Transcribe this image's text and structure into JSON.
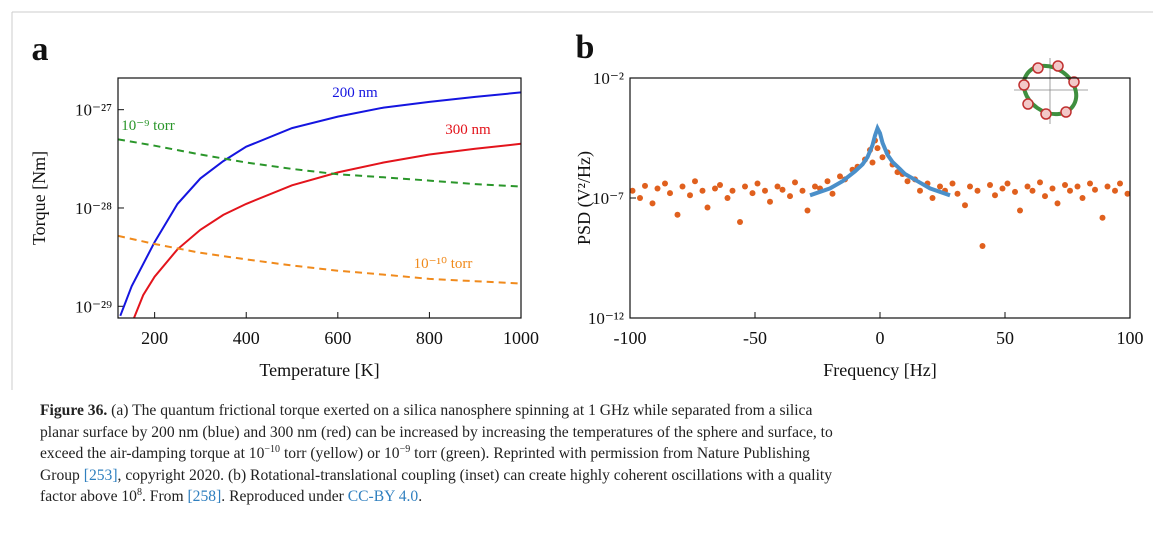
{
  "chart_data": [
    {
      "type": "line",
      "panel_label": "a",
      "x_label": "Temperature [K]",
      "y_label": "Torque [Nm]",
      "xlim": [
        120,
        1000
      ],
      "xticks": [
        200,
        400,
        600,
        800,
        1000
      ],
      "ylim": [
        7.6e-30,
        2.1e-27
      ],
      "ylog": true,
      "yticks": [
        {
          "value": 1e-29,
          "label": "10⁻²⁹"
        },
        {
          "value": 1e-28,
          "label": "10⁻²⁸"
        },
        {
          "value": 1e-27,
          "label": "10⁻²⁷"
        }
      ],
      "series": [
        {
          "name": "200 nm",
          "color": "#1515e0",
          "dash": false,
          "x": [
            125,
            150,
            200,
            250,
            300,
            350,
            400,
            500,
            600,
            700,
            800,
            900,
            1000
          ],
          "values": [
            8e-30,
            1.6e-29,
            4.5e-29,
            1.1e-28,
            2e-28,
            3e-28,
            4.2e-28,
            6.5e-28,
            8.5e-28,
            1.05e-27,
            1.2e-27,
            1.35e-27,
            1.5e-27
          ]
        },
        {
          "name": "300 nm",
          "color": "#e3141c",
          "dash": false,
          "x": [
            155,
            175,
            200,
            250,
            300,
            350,
            400,
            500,
            600,
            700,
            800,
            900,
            1000
          ],
          "values": [
            7.6e-30,
            1.3e-29,
            2e-29,
            3.8e-29,
            6e-29,
            8.5e-29,
            1.1e-28,
            1.7e-28,
            2.3e-28,
            2.9e-28,
            3.5e-28,
            4e-28,
            4.5e-28
          ]
        },
        {
          "name": "10⁻⁹ torr",
          "color": "#2a962a",
          "dash": true,
          "x": [
            120,
            200,
            300,
            400,
            500,
            600,
            700,
            800,
            900,
            1000
          ],
          "values": [
            5e-28,
            4.3e-28,
            3.5e-28,
            2.9e-28,
            2.5e-28,
            2.2e-28,
            2.05e-28,
            1.9e-28,
            1.75e-28,
            1.65e-28
          ]
        },
        {
          "name": "10⁻¹⁰ torr",
          "color": "#f08a1c",
          "dash": true,
          "x": [
            120,
            200,
            300,
            400,
            500,
            600,
            700,
            800,
            900,
            1000
          ],
          "values": [
            5.2e-29,
            4.3e-29,
            3.5e-29,
            3e-29,
            2.6e-29,
            2.3e-29,
            2.1e-29,
            1.9e-29,
            1.8e-29,
            1.7e-29
          ]
        }
      ]
    },
    {
      "type": "scatter",
      "panel_label": "b",
      "x_label": "Frequency [Hz]",
      "y_label": "PSD (V²/Hz)",
      "xlim": [
        -100,
        100
      ],
      "xticks": [
        -100,
        -50,
        0,
        50,
        100
      ],
      "ylim": [
        1e-12,
        0.01
      ],
      "ylog": true,
      "yticks": [
        {
          "value": 1e-12,
          "label": "10⁻¹²"
        },
        {
          "value": 1e-07,
          "label": "10⁻⁷"
        },
        {
          "value": 0.01,
          "label": "10⁻²"
        }
      ],
      "series": [
        {
          "type": "scatter",
          "color": "#e0601e",
          "x": [
            -99,
            -96,
            -94,
            -91,
            -89,
            -86,
            -84,
            -81,
            -79,
            -76,
            -74,
            -71,
            -69,
            -66,
            -64,
            -61,
            -59,
            -56,
            -54,
            -51,
            -49,
            -46,
            -44,
            -41,
            -39,
            -36,
            -34,
            -31,
            -29,
            -26,
            -24,
            -21,
            -19,
            -16,
            -14,
            -11,
            -9,
            -6,
            -4,
            -3,
            -2,
            -1,
            1,
            3,
            5,
            7,
            9,
            11,
            14,
            16,
            19,
            21,
            24,
            26,
            29,
            31,
            34,
            36,
            39,
            41,
            44,
            46,
            49,
            51,
            54,
            56,
            59,
            61,
            64,
            66,
            69,
            71,
            74,
            76,
            79,
            81,
            84,
            86,
            89,
            91,
            94,
            96,
            99
          ],
          "values": [
            2e-07,
            1e-07,
            3.2e-07,
            6e-08,
            2.5e-07,
            4e-07,
            1.6e-07,
            2e-08,
            3e-07,
            1.3e-07,
            5e-07,
            2e-07,
            4e-08,
            2.5e-07,
            3.5e-07,
            1e-07,
            2e-07,
            1e-08,
            3e-07,
            1.6e-07,
            4e-07,
            2e-07,
            7e-08,
            3e-07,
            2.2e-07,
            1.2e-07,
            4.5e-07,
            2e-07,
            3e-08,
            3e-07,
            2.5e-07,
            5e-07,
            1.5e-07,
            8e-07,
            6e-07,
            1.5e-06,
            2e-06,
            4e-06,
            1e-05,
            3e-06,
            2.5e-05,
            1.2e-05,
            5e-06,
            8e-06,
            2.5e-06,
            1.2e-06,
            1e-06,
            5e-07,
            6e-07,
            2e-07,
            4e-07,
            1e-07,
            3e-07,
            2e-07,
            4e-07,
            1.5e-07,
            5e-08,
            3e-07,
            2e-07,
            1e-09,
            3.5e-07,
            1.3e-07,
            2.5e-07,
            4e-07,
            1.8e-07,
            3e-08,
            3e-07,
            2e-07,
            4.5e-07,
            1.2e-07,
            2.5e-07,
            6e-08,
            3.5e-07,
            2e-07,
            3e-07,
            1e-07,
            4e-07,
            2.2e-07,
            1.5e-08,
            3e-07,
            2e-07,
            4e-07,
            1.5e-07
          ]
        },
        {
          "type": "line",
          "color": "#4a8fc9",
          "x": [
            -28,
            -20,
            -15,
            -10,
            -7,
            -5,
            -3,
            -2,
            -1,
            0,
            1,
            3,
            5,
            8,
            10,
            15,
            20,
            28
          ],
          "values": [
            1.3e-07,
            2.5e-07,
            5e-07,
            1.3e-06,
            2.5e-06,
            5e-06,
            1.6e-05,
            4e-05,
            8e-05,
            5e-05,
            2e-05,
            6.3e-06,
            3.2e-06,
            1.6e-06,
            1e-06,
            5e-07,
            2.5e-07,
            1.3e-07
          ]
        }
      ]
    }
  ],
  "caption": {
    "label": "Figure 36.",
    "lines": [
      [
        " (a) The quantum frictional torque exerted on a silica nanosphere spinning at 1 GHz while separated from a silica"
      ],
      [
        "planar surface by 200 nm (blue) and 300 nm (red) can be increased by increasing the temperatures of the sphere and surface, to"
      ],
      [
        "exceed the air-damping torque at 10",
        {
          "text": "−10",
          "style": "sup"
        },
        " torr (yellow) or 10",
        {
          "text": "−9",
          "style": "sup"
        },
        " torr (green). Reprinted with permission from Nature Publishing"
      ],
      [
        "Group ",
        {
          "text": "[253]",
          "style": "link"
        },
        ", copyright 2020. (b) Rotational-translational coupling (inset) can create highly coherent oscillations with a quality"
      ],
      [
        "factor above 10",
        {
          "text": "8",
          "style": "sup"
        },
        ". From ",
        {
          "text": "[258]",
          "style": "link"
        },
        ". Reproduced under ",
        {
          "text": "CC-BY 4.0",
          "style": "link"
        },
        "."
      ]
    ]
  }
}
